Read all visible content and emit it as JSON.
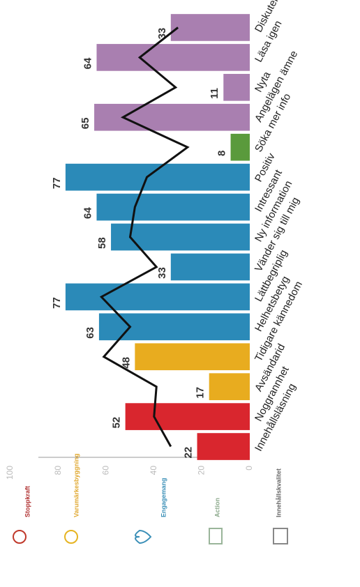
{
  "chart_data": {
    "type": "bar",
    "categories": [
      "Innehållsläsning",
      "Noggrannhet",
      "Avsändarid",
      "Tidigare kännedom",
      "Helhetsbetyg",
      "Lättbegriplig",
      "Vänder sig till mig",
      "Ny information",
      "Intressant",
      "Positiv",
      "Söka mer info",
      "Angelägen ämne",
      "Nyta",
      "Läsa igen",
      "Diskutera"
    ],
    "values": [
      22,
      52,
      17,
      48,
      63,
      77,
      33,
      58,
      64,
      77,
      8,
      65,
      11,
      64,
      33
    ],
    "colors": [
      "#d9262e",
      "#d9262e",
      "#e8ac1f",
      "#e8ac1f",
      "#2b8ab8",
      "#2b8ab8",
      "#2b8ab8",
      "#2b8ab8",
      "#2b8ab8",
      "#2b8ab8",
      "#5a9a3c",
      "#a97fb0",
      "#a97fb0",
      "#a97fb0",
      "#a97fb0"
    ],
    "line_values": [
      33,
      40,
      39,
      61,
      50,
      62,
      39,
      50,
      48,
      43,
      26,
      53,
      31,
      46,
      30
    ],
    "line_color": "#111111",
    "ylim": [
      0,
      100
    ],
    "yticks": [
      0,
      20,
      40,
      60,
      80,
      100
    ],
    "legend": [
      {
        "label": "Stoppkraft",
        "color": "#b03030"
      },
      {
        "label": "Varumärkesbyggning",
        "color": "#e0a830"
      },
      {
        "label": "Engagemang",
        "color": "#3a8fb7"
      },
      {
        "label": "Action",
        "color": "#8aa88a"
      },
      {
        "label": "Innehållskvalitet",
        "color": "#666666"
      }
    ]
  }
}
